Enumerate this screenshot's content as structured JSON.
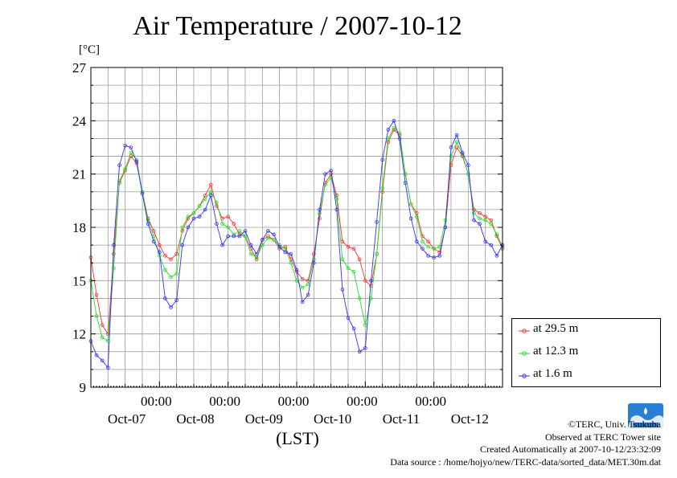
{
  "title": "Air Temperature / 2007-10-12",
  "unit": "[°C]",
  "credits": {
    "copyright": "©TERC, Univ. Tsukuba",
    "observed": "Observed at TERC Tower site",
    "created": "Created Automatically at 2007-10-12/23:32:09",
    "source": "Data source : /home/hojyo/new/TERC-data/sorted_data/MET.30m.dat"
  },
  "logo_icon": "terc-logo-icon",
  "chart_data": {
    "type": "line",
    "title": "Air Temperature / 2007-10-12",
    "ylabel": "[°C]",
    "xlabel": "(LST)",
    "ylim": [
      9,
      27
    ],
    "yticks": [
      9,
      12,
      15,
      18,
      21,
      24,
      27
    ],
    "xlim_hours": [
      0,
      144
    ],
    "xtick_labels": [
      "00:00",
      "00:00",
      "00:00",
      "00:00",
      "00:00"
    ],
    "day_labels": [
      "Oct-07",
      "Oct-08",
      "Oct-09",
      "Oct-10",
      "Oct-11",
      "Oct-12"
    ],
    "grid": true,
    "legend_position": "right-bottom outside",
    "x_hours": [
      0,
      2,
      4,
      6,
      8,
      10,
      12,
      14,
      16,
      18,
      20,
      22,
      24,
      26,
      28,
      30,
      32,
      34,
      36,
      38,
      40,
      42,
      44,
      46,
      48,
      50,
      52,
      54,
      56,
      58,
      60,
      62,
      64,
      66,
      68,
      70,
      72,
      74,
      76,
      78,
      80,
      82,
      84,
      86,
      88,
      90,
      92,
      94,
      96,
      98,
      100,
      102,
      104,
      106,
      108,
      110,
      112,
      114,
      116,
      118,
      120,
      122,
      124,
      126,
      128,
      130,
      132,
      134,
      136,
      138,
      140,
      142,
      144
    ],
    "series": [
      {
        "name": "at 29.5 m",
        "color": "#ff3030",
        "values": [
          16.3,
          14.2,
          12.5,
          12.0,
          16.5,
          20.5,
          21.2,
          22.0,
          21.6,
          20.0,
          18.5,
          17.8,
          17.0,
          16.4,
          16.2,
          16.5,
          17.8,
          18.5,
          18.8,
          19.2,
          19.8,
          20.4,
          19.2,
          18.5,
          18.6,
          18.2,
          17.6,
          17.5,
          16.8,
          16.2,
          17.3,
          17.5,
          17.3,
          16.8,
          16.9,
          16.2,
          15.5,
          15.1,
          15.0,
          16.5,
          18.5,
          20.5,
          21.0,
          19.8,
          17.2,
          16.9,
          16.8,
          16.2,
          15.0,
          14.7,
          16.5,
          20.0,
          22.8,
          23.5,
          23.2,
          21.0,
          19.3,
          18.8,
          17.5,
          17.2,
          16.8,
          16.6,
          18.0,
          21.5,
          22.5,
          22.0,
          21.0,
          19.0,
          18.8,
          18.6,
          18.4,
          17.5,
          16.8
        ]
      },
      {
        "name": "at 12.3 m",
        "color": "#20e020",
        "values": [
          15.0,
          13.0,
          11.8,
          11.6,
          15.7,
          20.6,
          21.3,
          22.2,
          21.8,
          20.0,
          18.4,
          17.5,
          16.4,
          15.6,
          15.2,
          15.4,
          18.0,
          18.6,
          18.8,
          19.2,
          19.6,
          20.0,
          19.4,
          18.2,
          18.0,
          17.6,
          17.8,
          17.5,
          16.5,
          16.3,
          17.0,
          17.4,
          17.3,
          17.0,
          16.8,
          16.0,
          15.0,
          14.6,
          14.8,
          16.2,
          18.8,
          20.4,
          20.8,
          19.6,
          16.2,
          15.7,
          15.5,
          14.0,
          12.5,
          14.0,
          16.5,
          20.2,
          23.0,
          23.6,
          23.3,
          21.0,
          19.3,
          18.6,
          17.2,
          16.9,
          16.8,
          16.9,
          18.4,
          22.0,
          22.8,
          22.1,
          21.0,
          18.8,
          18.5,
          18.4,
          18.2,
          17.6,
          16.9
        ]
      },
      {
        "name": "at 1.6 m",
        "color": "#3030ff",
        "values": [
          11.6,
          10.8,
          10.5,
          10.1,
          17.0,
          21.5,
          22.6,
          22.5,
          21.7,
          19.9,
          18.2,
          17.2,
          16.6,
          14.0,
          13.5,
          13.9,
          17.0,
          18.0,
          18.5,
          18.6,
          19.0,
          19.8,
          18.2,
          17.0,
          17.5,
          17.5,
          17.5,
          17.8,
          17.0,
          16.5,
          17.3,
          17.8,
          17.6,
          16.9,
          16.6,
          16.5,
          15.6,
          13.8,
          14.2,
          16.0,
          19.0,
          21.0,
          21.2,
          19.0,
          14.5,
          12.9,
          12.3,
          11.0,
          11.2,
          15.0,
          18.3,
          21.8,
          23.5,
          24.0,
          23.0,
          20.5,
          18.5,
          17.2,
          16.8,
          16.4,
          16.3,
          16.4,
          18.0,
          22.5,
          23.2,
          22.2,
          21.5,
          18.4,
          18.2,
          17.2,
          17.0,
          16.4,
          17.0
        ]
      }
    ]
  }
}
